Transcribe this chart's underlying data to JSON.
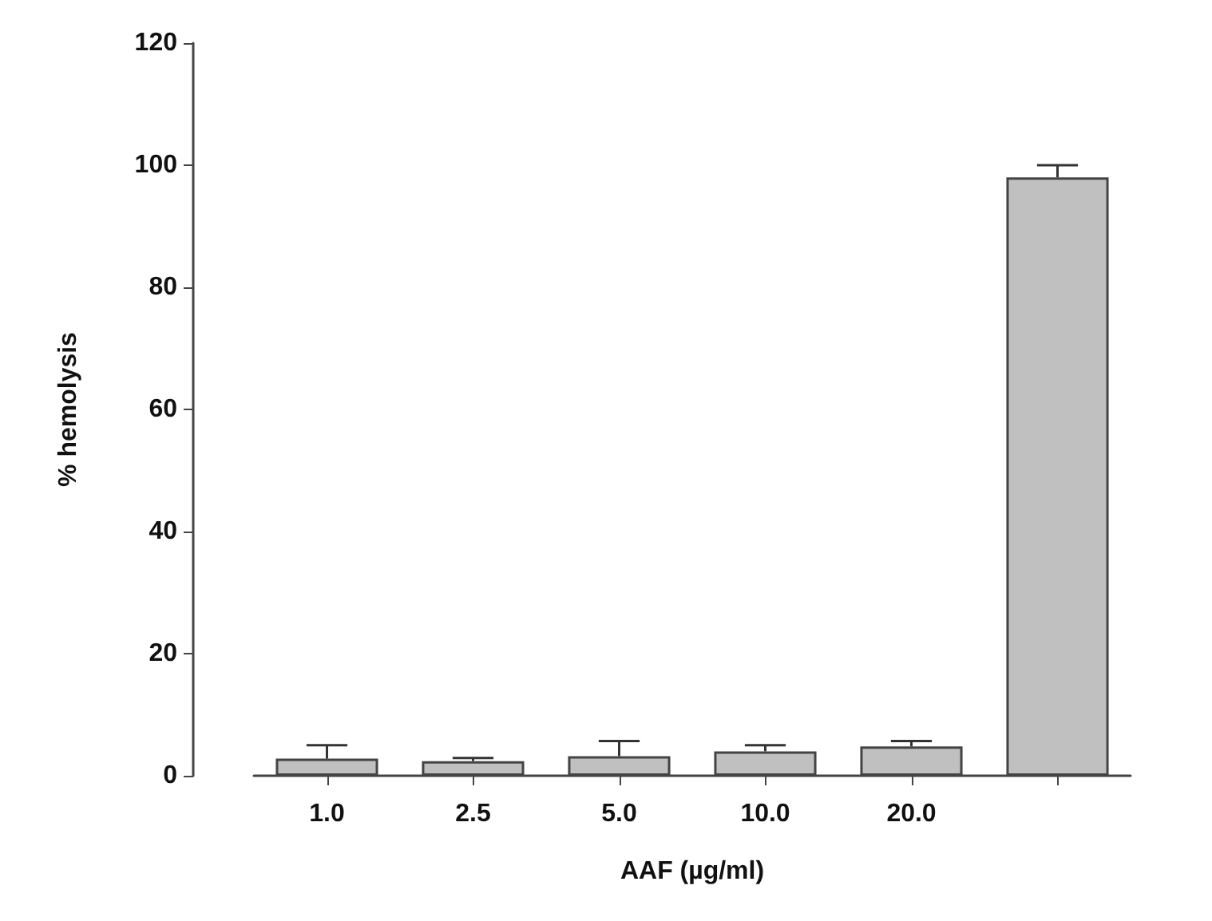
{
  "chart_data": {
    "type": "bar",
    "xlabel": "AAF (µg/ml)",
    "ylabel": "% hemolysis",
    "categories": [
      "1.0",
      "2.5",
      "5.0",
      "10.0",
      "20.0",
      null
    ],
    "values": [
      2.8,
      2.4,
      3.2,
      4.0,
      4.8,
      98
    ],
    "errors": [
      [
        2.8,
        5.0
      ],
      [
        2.4,
        2.9
      ],
      [
        3.2,
        5.7
      ],
      [
        4.0,
        5.0
      ],
      [
        4.8,
        5.7
      ],
      [
        98,
        100
      ]
    ],
    "color": "#c0c0c0",
    "ylim": [
      0,
      120
    ],
    "yticks": [
      0,
      20,
      40,
      60,
      80,
      100,
      120
    ],
    "grid": false
  }
}
